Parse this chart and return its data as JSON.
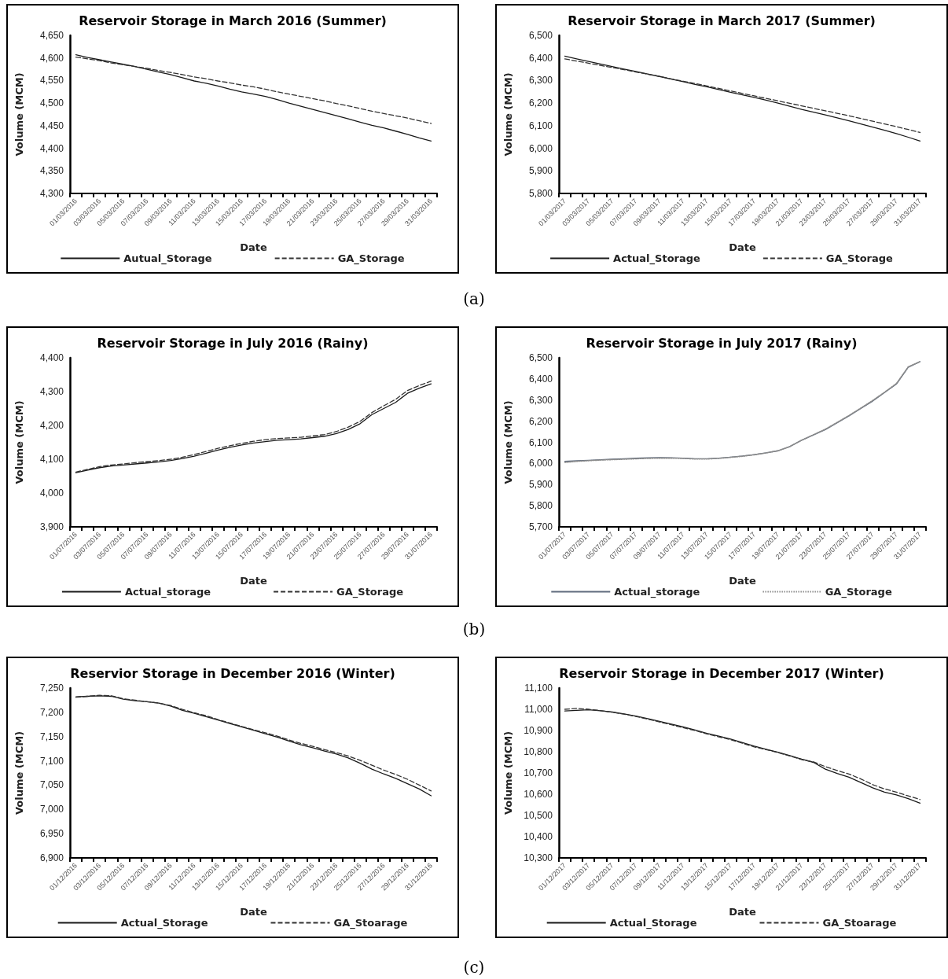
{
  "chart_data": [
    {
      "type": "line",
      "title": "Reservoir Storage in March 2016 (Summer)",
      "xlabel": "Date",
      "ylabel": "Volume (MCM)",
      "annotations": [
        "(a)"
      ],
      "categories": [
        "01/03/2016",
        null,
        "03/03/2016",
        null,
        "05/03/2016",
        null,
        "07/03/2016",
        null,
        "09/03/2016",
        null,
        "11/03/2016",
        null,
        "13/03/2016",
        null,
        "15/03/2016",
        null,
        "17/03/2016",
        null,
        "19/03/2016",
        null,
        "21/03/2016",
        null,
        "23/03/2016",
        null,
        "25/03/2016",
        null,
        "27/03/2016",
        null,
        "29/03/2016",
        null,
        "31/03/2016"
      ],
      "series": [
        {
          "name": "Autual_Storage",
          "color": "#1a1a1a",
          "line_style": "solid",
          "values": [
            4607,
            4601,
            4596,
            4591,
            4586,
            4581,
            4575,
            4569,
            4563,
            4556,
            4549,
            4544,
            4538,
            4531,
            4525,
            4520,
            4515,
            4508,
            4500,
            4493,
            4486,
            4479,
            4472,
            4465,
            4458,
            4451,
            4445,
            4438,
            4431,
            4423,
            4416
          ]
        },
        {
          "name": "GA_Storage",
          "color": "#333333",
          "line_style": "dashed",
          "values": [
            4602,
            4598,
            4594,
            4589,
            4585,
            4581,
            4577,
            4572,
            4568,
            4563,
            4558,
            4554,
            4549,
            4545,
            4540,
            4536,
            4531,
            4525,
            4520,
            4515,
            4510,
            4505,
            4499,
            4494,
            4488,
            4482,
            4477,
            4472,
            4467,
            4461,
            4455
          ]
        }
      ],
      "ylim": [
        4300,
        4650
      ],
      "yticks": [
        {
          "value": 4300,
          "label": "4,300"
        },
        {
          "value": 4350,
          "label": "4,350"
        },
        {
          "value": 4400,
          "label": "4,400"
        },
        {
          "value": 4450,
          "label": "4,450"
        },
        {
          "value": 4500,
          "label": "4,500"
        },
        {
          "value": 4550,
          "label": "4,550"
        },
        {
          "value": 4600,
          "label": "4,600"
        },
        {
          "value": 4650,
          "label": "4,650"
        }
      ],
      "grid": false,
      "legend": "bottom",
      "marker": "none"
    },
    {
      "type": "line",
      "title": "Reservoir Storage in March 2017 (Summer)",
      "xlabel": "Date",
      "ylabel": "Volume (MCM)",
      "categories": [
        "01/03/2017",
        null,
        "03/03/2017",
        null,
        "05/03/2017",
        null,
        "07/03/2017",
        null,
        "09/03/2017",
        null,
        "11/03/2017",
        null,
        "13/03/2017",
        null,
        "15/03/2017",
        null,
        "17/03/2017",
        null,
        "19/03/2017",
        null,
        "21/03/2017",
        null,
        "23/03/2017",
        null,
        "25/03/2017",
        null,
        "27/03/2017",
        null,
        "29/03/2017",
        null,
        "31/03/2017"
      ],
      "series": [
        {
          "name": "Actual_Storage",
          "color": "#1a1a1a",
          "line_style": "solid",
          "values": [
            6408,
            6396,
            6385,
            6373,
            6362,
            6351,
            6340,
            6329,
            6318,
            6306,
            6295,
            6283,
            6272,
            6260,
            6248,
            6237,
            6225,
            6213,
            6200,
            6186,
            6172,
            6160,
            6148,
            6135,
            6122,
            6108,
            6094,
            6080,
            6065,
            6049,
            6032
          ]
        },
        {
          "name": "GA_Storage",
          "color": "#333333",
          "line_style": "dashed",
          "values": [
            6396,
            6386,
            6377,
            6367,
            6358,
            6348,
            6338,
            6328,
            6318,
            6307,
            6297,
            6287,
            6276,
            6265,
            6254,
            6243,
            6232,
            6221,
            6210,
            6199,
            6188,
            6177,
            6166,
            6155,
            6144,
            6132,
            6120,
            6108,
            6096,
            6083,
            6070
          ]
        }
      ],
      "ylim": [
        5800,
        6500
      ],
      "yticks": [
        {
          "value": 5800,
          "label": "5,800"
        },
        {
          "value": 5900,
          "label": "5,900"
        },
        {
          "value": 6000,
          "label": "6,000"
        },
        {
          "value": 6100,
          "label": "6,100"
        },
        {
          "value": 6200,
          "label": "6,200"
        },
        {
          "value": 6300,
          "label": "6,300"
        },
        {
          "value": 6400,
          "label": "6,400"
        },
        {
          "value": 6500,
          "label": "6,500"
        }
      ],
      "grid": false,
      "legend": "bottom",
      "marker": "none"
    },
    {
      "type": "line",
      "title": "Reservoir Storage in July 2016 (Rainy)",
      "xlabel": "Date",
      "ylabel": "Volume (MCM)",
      "annotations": [
        "(b)"
      ],
      "categories": [
        "01/07/2016",
        null,
        "03/07/2016",
        null,
        "05/07/2016",
        null,
        "07/07/2016",
        null,
        "09/07/2016",
        null,
        "11/07/2016",
        null,
        "13/07/2016",
        null,
        "15/07/2016",
        null,
        "17/07/2016",
        null,
        "19/07/2016",
        null,
        "21/07/2016",
        null,
        "23/07/2016",
        null,
        "25/07/2016",
        null,
        "27/07/2016",
        null,
        "29/07/2016",
        null,
        "31/07/2016"
      ],
      "series": [
        {
          "name": "Actual_storage",
          "color": "#1a1a1a",
          "line_style": "solid",
          "values": [
            4060,
            4068,
            4075,
            4080,
            4083,
            4086,
            4089,
            4092,
            4096,
            4102,
            4109,
            4118,
            4127,
            4135,
            4142,
            4148,
            4152,
            4156,
            4158,
            4160,
            4164,
            4168,
            4176,
            4188,
            4205,
            4232,
            4250,
            4268,
            4295,
            4310,
            4323
          ]
        },
        {
          "name": "GA_Storage",
          "color": "#333333",
          "line_style": "dashed",
          "values": [
            4062,
            4070,
            4078,
            4083,
            4086,
            4090,
            4093,
            4096,
            4100,
            4106,
            4114,
            4123,
            4132,
            4140,
            4147,
            4153,
            4158,
            4161,
            4163,
            4165,
            4169,
            4173,
            4182,
            4195,
            4212,
            4238,
            4258,
            4277,
            4303,
            4318,
            4331
          ]
        }
      ],
      "ylim": [
        3900,
        4400
      ],
      "yticks": [
        {
          "value": 3900,
          "label": "3,900"
        },
        {
          "value": 4000,
          "label": "4,000"
        },
        {
          "value": 4100,
          "label": "4,100"
        },
        {
          "value": 4200,
          "label": "4,200"
        },
        {
          "value": 4300,
          "label": "4,300"
        },
        {
          "value": 4400,
          "label": "4,400"
        }
      ],
      "grid": false,
      "legend": "bottom",
      "marker": "none"
    },
    {
      "type": "line",
      "title": "Reservoir Storage in July 2017 (Rainy)",
      "xlabel": "Date",
      "ylabel": "Volume (MCM)",
      "categories": [
        "01/07/2017",
        null,
        "03/07/2017",
        null,
        "05/07/2017",
        null,
        "07/07/2017",
        null,
        "09/07/2017",
        null,
        "11/07/2017",
        null,
        "13/07/2017",
        null,
        "15/07/2017",
        null,
        "17/07/2017",
        null,
        "19/07/2017",
        null,
        "21/07/2017",
        null,
        "23/07/2017",
        null,
        "25/07/2017",
        null,
        "27/07/2017",
        null,
        "29/07/2017",
        null,
        "31/07/2017"
      ],
      "series": [
        {
          "name": "Actual_storage",
          "color": "#5f6b7d",
          "line_style": "solid",
          "values": [
            6010,
            6013,
            6015,
            6018,
            6020,
            6022,
            6025,
            6027,
            6028,
            6027,
            6025,
            6022,
            6022,
            6025,
            6030,
            6035,
            6042,
            6050,
            6060,
            6080,
            6110,
            6135,
            6160,
            6192,
            6225,
            6260,
            6295,
            6335,
            6375,
            6455,
            6482
          ]
        },
        {
          "name": "GA_Storage",
          "color": "#8c8c8c",
          "line_style": "dotted",
          "values": [
            6005,
            6010,
            6013,
            6016,
            6018,
            6020,
            6022,
            6024,
            6025,
            6025,
            6024,
            6021,
            6021,
            6024,
            6029,
            6034,
            6041,
            6050,
            6060,
            6080,
            6110,
            6136,
            6162,
            6194,
            6227,
            6262,
            6298,
            6337,
            6378,
            6457,
            6482
          ]
        }
      ],
      "ylim": [
        5700,
        6500
      ],
      "yticks": [
        {
          "value": 5700,
          "label": "5,700"
        },
        {
          "value": 5800,
          "label": "5,800"
        },
        {
          "value": 5900,
          "label": "5,900"
        },
        {
          "value": 6000,
          "label": "6,000"
        },
        {
          "value": 6100,
          "label": "6,100"
        },
        {
          "value": 6200,
          "label": "6,200"
        },
        {
          "value": 6300,
          "label": "6,300"
        },
        {
          "value": 6400,
          "label": "6,400"
        },
        {
          "value": 6500,
          "label": "6,500"
        }
      ],
      "grid": false,
      "legend": "bottom",
      "marker": "none"
    },
    {
      "type": "line",
      "title": "Reservior Storage in December 2016 (Winter)",
      "xlabel": "Date",
      "ylabel": "Volume (MCM)",
      "annotations": [
        "(c)"
      ],
      "categories": [
        "01/12/2016",
        null,
        "03/12/2016",
        null,
        "05/12/2016",
        null,
        "07/12/2016",
        null,
        "09/12/2016",
        null,
        "11/12/2016",
        null,
        "13/12/2016",
        null,
        "15/12/2016",
        null,
        "17/12/2016",
        null,
        "19/12/2016",
        null,
        "21/12/2016",
        null,
        "23/12/2016",
        null,
        "25/12/2016",
        null,
        "27/12/2016",
        null,
        "29/12/2016",
        null,
        "31/12/2016"
      ],
      "series": [
        {
          "name": "Actual_Storage",
          "color": "#1a1a1a",
          "line_style": "solid",
          "values": [
            7232,
            7233,
            7234,
            7233,
            7227,
            7224,
            7222,
            7219,
            7213,
            7204,
            7198,
            7191,
            7184,
            7177,
            7170,
            7163,
            7156,
            7149,
            7141,
            7133,
            7127,
            7120,
            7114,
            7106,
            7095,
            7083,
            7073,
            7064,
            7053,
            7042,
            7028
          ]
        },
        {
          "name": "GA_Stoarage",
          "color": "#333333",
          "line_style": "dashed",
          "values": [
            7231,
            7233,
            7235,
            7234,
            7228,
            7225,
            7222,
            7219,
            7214,
            7206,
            7199,
            7193,
            7185,
            7178,
            7171,
            7164,
            7158,
            7151,
            7143,
            7136,
            7130,
            7123,
            7117,
            7110,
            7101,
            7091,
            7081,
            7072,
            7062,
            7050,
            7038
          ]
        }
      ],
      "ylim": [
        6900,
        7250
      ],
      "yticks": [
        {
          "value": 6900,
          "label": "6,900"
        },
        {
          "value": 6950,
          "label": "6,950"
        },
        {
          "value": 7000,
          "label": "7,000"
        },
        {
          "value": 7050,
          "label": "7,050"
        },
        {
          "value": 7100,
          "label": "7,100"
        },
        {
          "value": 7150,
          "label": "7,150"
        },
        {
          "value": 7200,
          "label": "7,200"
        },
        {
          "value": 7250,
          "label": "7,250"
        }
      ],
      "grid": false,
      "legend": "bottom",
      "marker": "none"
    },
    {
      "type": "line",
      "title": "Reservoir Storage in December 2017 (Winter)",
      "xlabel": "Date",
      "ylabel": "Volume (MCM)",
      "categories": [
        "01/12/2017",
        null,
        "03/12/2017",
        null,
        "05/12/2017",
        null,
        "07/12/2017",
        null,
        "09/12/2017",
        null,
        "11/12/2017",
        null,
        "13/12/2017",
        null,
        "15/12/2017",
        null,
        "17/12/2017",
        null,
        "19/12/2017",
        null,
        "21/12/2017",
        null,
        "23/12/2017",
        null,
        "25/12/2017",
        null,
        "27/12/2017",
        null,
        "29/12/2017",
        null,
        "31/12/2017"
      ],
      "series": [
        {
          "name": "Actual_Storage",
          "color": "#1a1a1a",
          "line_style": "solid",
          "values": [
            10992,
            10995,
            10998,
            10993,
            10987,
            10978,
            10968,
            10956,
            10943,
            10930,
            10917,
            10902,
            10887,
            10874,
            10860,
            10843,
            10826,
            10812,
            10798,
            10782,
            10765,
            10750,
            10718,
            10698,
            10680,
            10655,
            10630,
            10610,
            10597,
            10579,
            10558
          ]
        },
        {
          "name": "GA_Stoarage",
          "color": "#333333",
          "line_style": "dashed",
          "values": [
            11000,
            11004,
            11000,
            10994,
            10986,
            10977,
            10966,
            10954,
            10940,
            10927,
            10913,
            10900,
            10884,
            10870,
            10857,
            10840,
            10823,
            10810,
            10796,
            10780,
            10763,
            10752,
            10730,
            10712,
            10695,
            10672,
            10645,
            10625,
            10610,
            10592,
            10575
          ]
        }
      ],
      "ylim": [
        10300,
        11100
      ],
      "yticks": [
        {
          "value": 10300,
          "label": "10,300"
        },
        {
          "value": 10400,
          "label": "10,400"
        },
        {
          "value": 10500,
          "label": "10,500"
        },
        {
          "value": 10600,
          "label": "10,600"
        },
        {
          "value": 10700,
          "label": "10,700"
        },
        {
          "value": 10800,
          "label": "10,800"
        },
        {
          "value": 10900,
          "label": "10,900"
        },
        {
          "value": 11000,
          "label": "11,000"
        },
        {
          "value": 11100,
          "label": "11,100"
        }
      ],
      "grid": false,
      "legend": "bottom",
      "marker": "none"
    }
  ]
}
